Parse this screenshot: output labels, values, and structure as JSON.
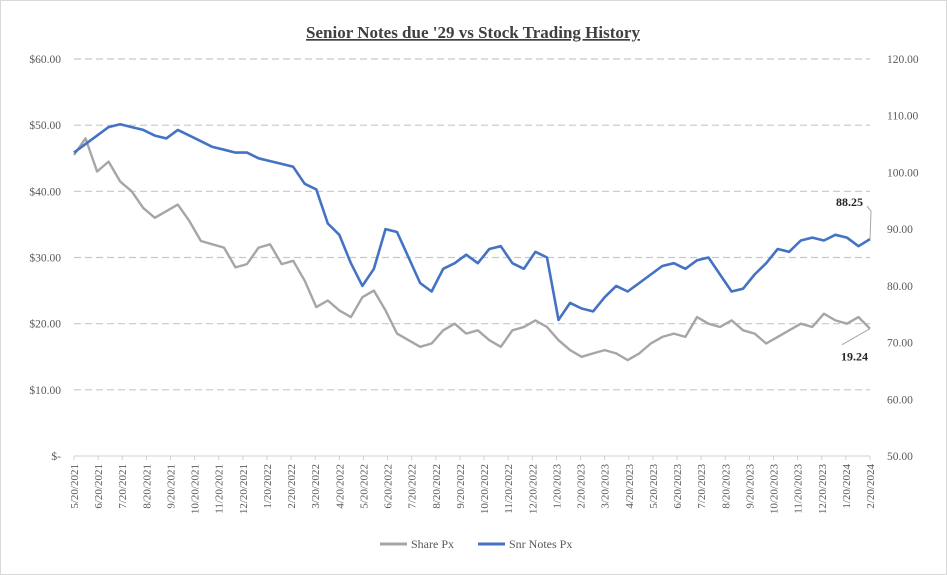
{
  "chart_data": {
    "type": "line",
    "title": "Senior Notes due '29 vs Stock Trading History",
    "y_left": {
      "min": 0,
      "max": 60,
      "step": 10,
      "tick_labels": [
        "$-",
        "$10.00",
        "$20.00",
        "$30.00",
        "$40.00",
        "$50.00",
        "$60.00"
      ]
    },
    "y_right": {
      "min": 50,
      "max": 120,
      "step": 10,
      "tick_labels": [
        "50.00",
        "60.00",
        "70.00",
        "80.00",
        "90.00",
        "100.00",
        "110.00",
        "120.00"
      ]
    },
    "grid": true,
    "legend_position": "bottom",
    "x_tick_labels": [
      "5/20/2021",
      "6/20/2021",
      "7/20/2021",
      "8/20/2021",
      "9/20/2021",
      "10/20/2021",
      "11/20/2021",
      "12/20/2021",
      "1/20/2022",
      "2/20/2022",
      "3/20/2022",
      "4/20/2022",
      "5/20/2022",
      "6/20/2022",
      "7/20/2022",
      "8/20/2022",
      "9/20/2022",
      "10/20/2022",
      "11/20/2022",
      "12/20/2022",
      "1/20/2023",
      "2/20/2023",
      "3/20/2023",
      "4/20/2023",
      "5/20/2023",
      "6/20/2023",
      "7/20/2023",
      "8/20/2023",
      "9/20/2023",
      "10/20/2023",
      "11/20/2023",
      "12/20/2023",
      "1/20/2024",
      "2/20/2024"
    ],
    "series": [
      {
        "name": "Share Px",
        "axis": "left",
        "color": "#a6a6a6",
        "end_label": "19.24",
        "values": [
          45.5,
          48.0,
          43.0,
          44.5,
          41.5,
          40.0,
          37.5,
          36.0,
          37.0,
          38.0,
          35.5,
          32.5,
          32.0,
          31.5,
          28.5,
          29.0,
          31.5,
          32.0,
          29.0,
          29.5,
          26.5,
          22.5,
          23.5,
          22.0,
          21.0,
          24.0,
          25.0,
          22.0,
          18.5,
          17.5,
          16.5,
          17.0,
          19.0,
          20.0,
          18.5,
          19.0,
          17.5,
          16.5,
          19.0,
          19.5,
          20.5,
          19.5,
          17.5,
          16.0,
          15.0,
          15.5,
          16.0,
          15.5,
          14.5,
          15.5,
          17.0,
          18.0,
          18.5,
          18.0,
          21.0,
          20.0,
          19.5,
          20.5,
          19.0,
          18.5,
          17.0,
          18.0,
          19.0,
          20.0,
          19.5,
          21.5,
          20.5,
          20.0,
          21.0,
          19.24
        ]
      },
      {
        "name": "Snr Notes Px",
        "axis": "right",
        "color": "#4472c4",
        "end_label": "88.25",
        "values": [
          103.5,
          105.0,
          106.5,
          108.0,
          108.5,
          108.0,
          107.5,
          106.5,
          106.0,
          107.5,
          106.5,
          105.5,
          104.5,
          104.0,
          103.5,
          103.5,
          102.5,
          102.0,
          101.5,
          101.0,
          98.0,
          97.0,
          91.0,
          89.0,
          84.0,
          80.0,
          83.0,
          90.0,
          89.5,
          85.0,
          80.5,
          79.0,
          83.0,
          84.0,
          85.5,
          84.0,
          86.5,
          87.0,
          84.0,
          83.0,
          86.0,
          85.0,
          74.0,
          77.0,
          76.0,
          75.5,
          78.0,
          80.0,
          79.0,
          80.5,
          82.0,
          83.5,
          84.0,
          83.0,
          84.5,
          85.0,
          82.0,
          79.0,
          79.5,
          82.0,
          84.0,
          86.5,
          86.0,
          88.0,
          88.5,
          88.0,
          89.0,
          88.5,
          87.0,
          88.25
        ]
      }
    ]
  }
}
